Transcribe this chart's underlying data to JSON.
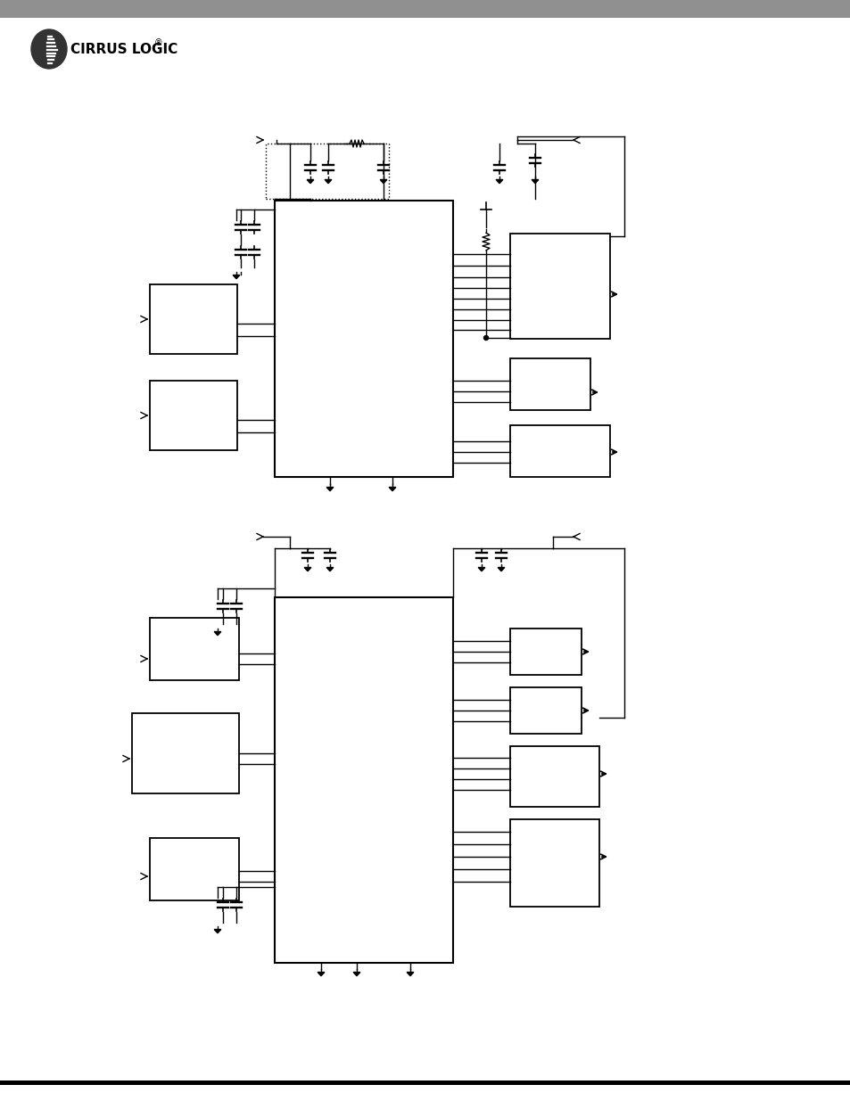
{
  "bg_color": "#ffffff",
  "header_bar_color": "#909090",
  "footer_bar_color": "#000000",
  "fig_width": 9.54,
  "fig_height": 12.35
}
